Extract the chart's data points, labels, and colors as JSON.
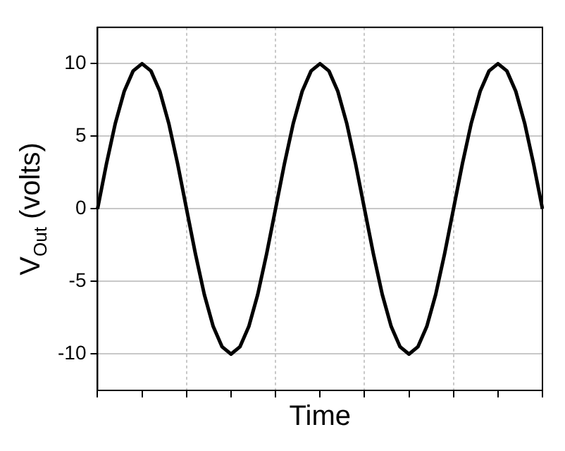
{
  "chart_data": {
    "type": "line",
    "xlabel": "Time",
    "ylabel": "V$_{Out}$ (volts)",
    "categories": [
      null,
      null,
      null,
      null,
      null,
      null,
      null,
      null,
      null,
      null,
      null,
      null,
      null,
      null,
      null,
      null,
      null,
      null,
      null,
      null,
      null,
      null,
      null,
      null,
      null,
      null,
      null,
      null,
      null,
      null,
      null,
      null,
      null,
      null,
      null,
      null,
      null,
      null,
      null,
      null,
      null,
      null,
      null,
      null,
      null,
      null,
      null,
      null,
      null,
      null,
      null
    ],
    "series": [
      {
        "color": "#000000",
        "values": [
          0,
          3.1,
          5.9,
          8.1,
          9.5,
          10,
          9.5,
          8.1,
          5.9,
          3.1,
          0,
          -3.1,
          -5.9,
          -8.1,
          -9.5,
          -10,
          -9.5,
          -8.1,
          -5.9,
          -3.1,
          0,
          3.1,
          5.9,
          8.1,
          9.5,
          10,
          9.5,
          8.1,
          5.9,
          3.1,
          0,
          -3.1,
          -5.9,
          -8.1,
          -9.5,
          -10,
          -9.5,
          -8.1,
          -5.9,
          -3.1,
          0,
          3.1,
          5.9,
          8.1,
          9.5,
          10,
          9.5,
          8.1,
          5.9,
          3.1,
          0
        ]
      }
    ],
    "ylim": [
      -12.5,
      12.5
    ],
    "yticks": [
      -10,
      -5,
      0,
      5,
      10
    ],
    "grid": true,
    "tick_labels": "y",
    "marker": "none",
    "line_style": "solid",
    "legend": false
  }
}
